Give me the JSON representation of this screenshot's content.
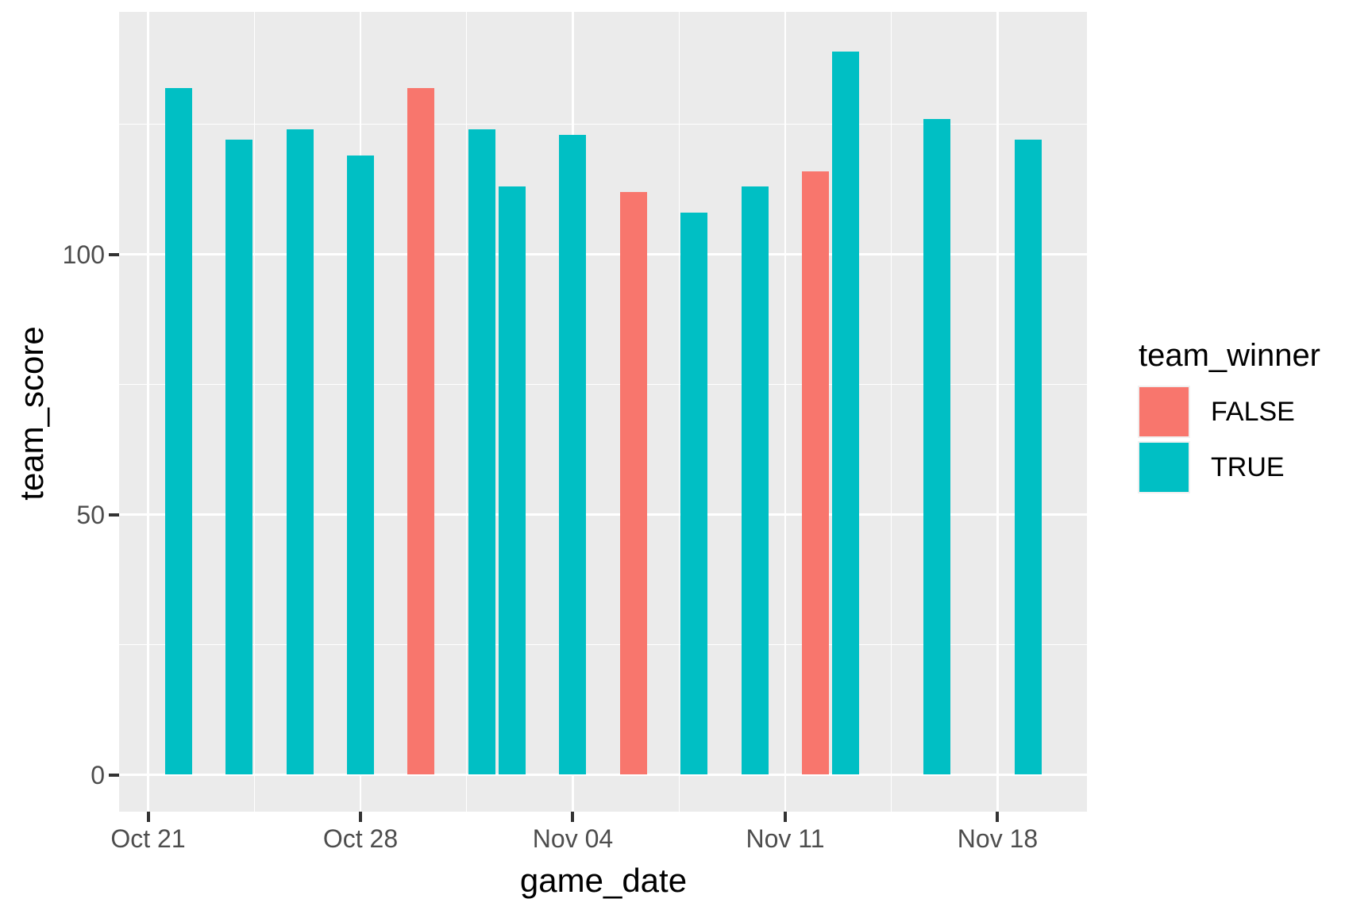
{
  "chart_data": {
    "type": "bar",
    "title": "",
    "xlabel": "game_date",
    "ylabel": "team_score",
    "x_axis": {
      "tick_labels": [
        "Oct 21",
        "Oct 28",
        "Nov 04",
        "Nov 11",
        "Nov 18"
      ],
      "tick_days": [
        0,
        7,
        14,
        21,
        28
      ],
      "minor_days": [
        3.5,
        10.5,
        17.5,
        24.5
      ]
    },
    "y_axis": {
      "tick_labels": [
        "0",
        "50",
        "100"
      ],
      "tick_values": [
        0,
        50,
        100
      ],
      "minor_values": [
        25,
        75,
        125
      ],
      "ylim": [
        -7,
        146.5
      ]
    },
    "grid": true,
    "bars": [
      {
        "date": "Oct 22",
        "day": 1,
        "team_score": 132,
        "team_winner": "TRUE"
      },
      {
        "date": "Oct 24",
        "day": 3,
        "team_score": 122,
        "team_winner": "TRUE"
      },
      {
        "date": "Oct 26",
        "day": 5,
        "team_score": 124,
        "team_winner": "TRUE"
      },
      {
        "date": "Oct 28",
        "day": 7,
        "team_score": 119,
        "team_winner": "TRUE"
      },
      {
        "date": "Oct 30",
        "day": 9,
        "team_score": 132,
        "team_winner": "FALSE"
      },
      {
        "date": "Nov 01",
        "day": 11,
        "team_score": 124,
        "team_winner": "TRUE"
      },
      {
        "date": "Nov 02",
        "day": 12,
        "team_score": 113,
        "team_winner": "TRUE"
      },
      {
        "date": "Nov 04",
        "day": 14,
        "team_score": 123,
        "team_winner": "TRUE"
      },
      {
        "date": "Nov 06",
        "day": 16,
        "team_score": 112,
        "team_winner": "FALSE"
      },
      {
        "date": "Nov 08",
        "day": 18,
        "team_score": 108,
        "team_winner": "TRUE"
      },
      {
        "date": "Nov 10",
        "day": 20,
        "team_score": 113,
        "team_winner": "TRUE"
      },
      {
        "date": "Nov 12",
        "day": 22,
        "team_score": 116,
        "team_winner": "FALSE"
      },
      {
        "date": "Nov 13",
        "day": 23,
        "team_score": 139,
        "team_winner": "TRUE"
      },
      {
        "date": "Nov 16",
        "day": 26,
        "team_score": 126,
        "team_winner": "TRUE"
      },
      {
        "date": "Nov 19",
        "day": 29,
        "team_score": 122,
        "team_winner": "TRUE"
      }
    ],
    "legend": {
      "title": "team_winner",
      "position": "right",
      "entries": [
        {
          "label": "FALSE",
          "color": "#F8766D"
        },
        {
          "label": "TRUE",
          "color": "#00BFC4"
        }
      ]
    },
    "colors": {
      "true_fill": "#00BFC4",
      "false_fill": "#F8766D",
      "panel_bg": "#EBEBEB",
      "gridline": "#FFFFFF",
      "tick_mark": "#333333",
      "tick_label": "#4D4D4D",
      "axis_title": "#000000"
    }
  }
}
